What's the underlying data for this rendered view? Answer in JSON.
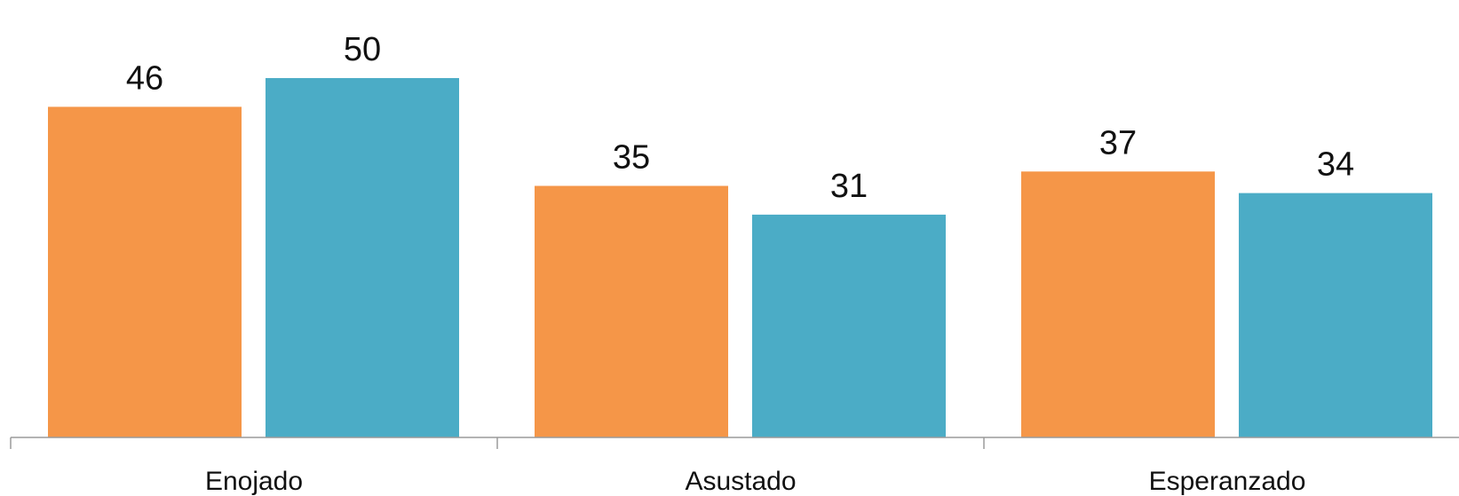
{
  "chart_data": {
    "type": "bar",
    "categories": [
      "Enojado",
      "Asustado",
      "Esperanzado"
    ],
    "series": [
      {
        "values": [
          46,
          35,
          37
        ],
        "color": "#F59648"
      },
      {
        "values": [
          50,
          31,
          34
        ],
        "color": "#4BACC6"
      }
    ],
    "ylim": [
      0,
      54
    ],
    "grid": false,
    "y_axis_visible": false,
    "data_labels": true
  }
}
